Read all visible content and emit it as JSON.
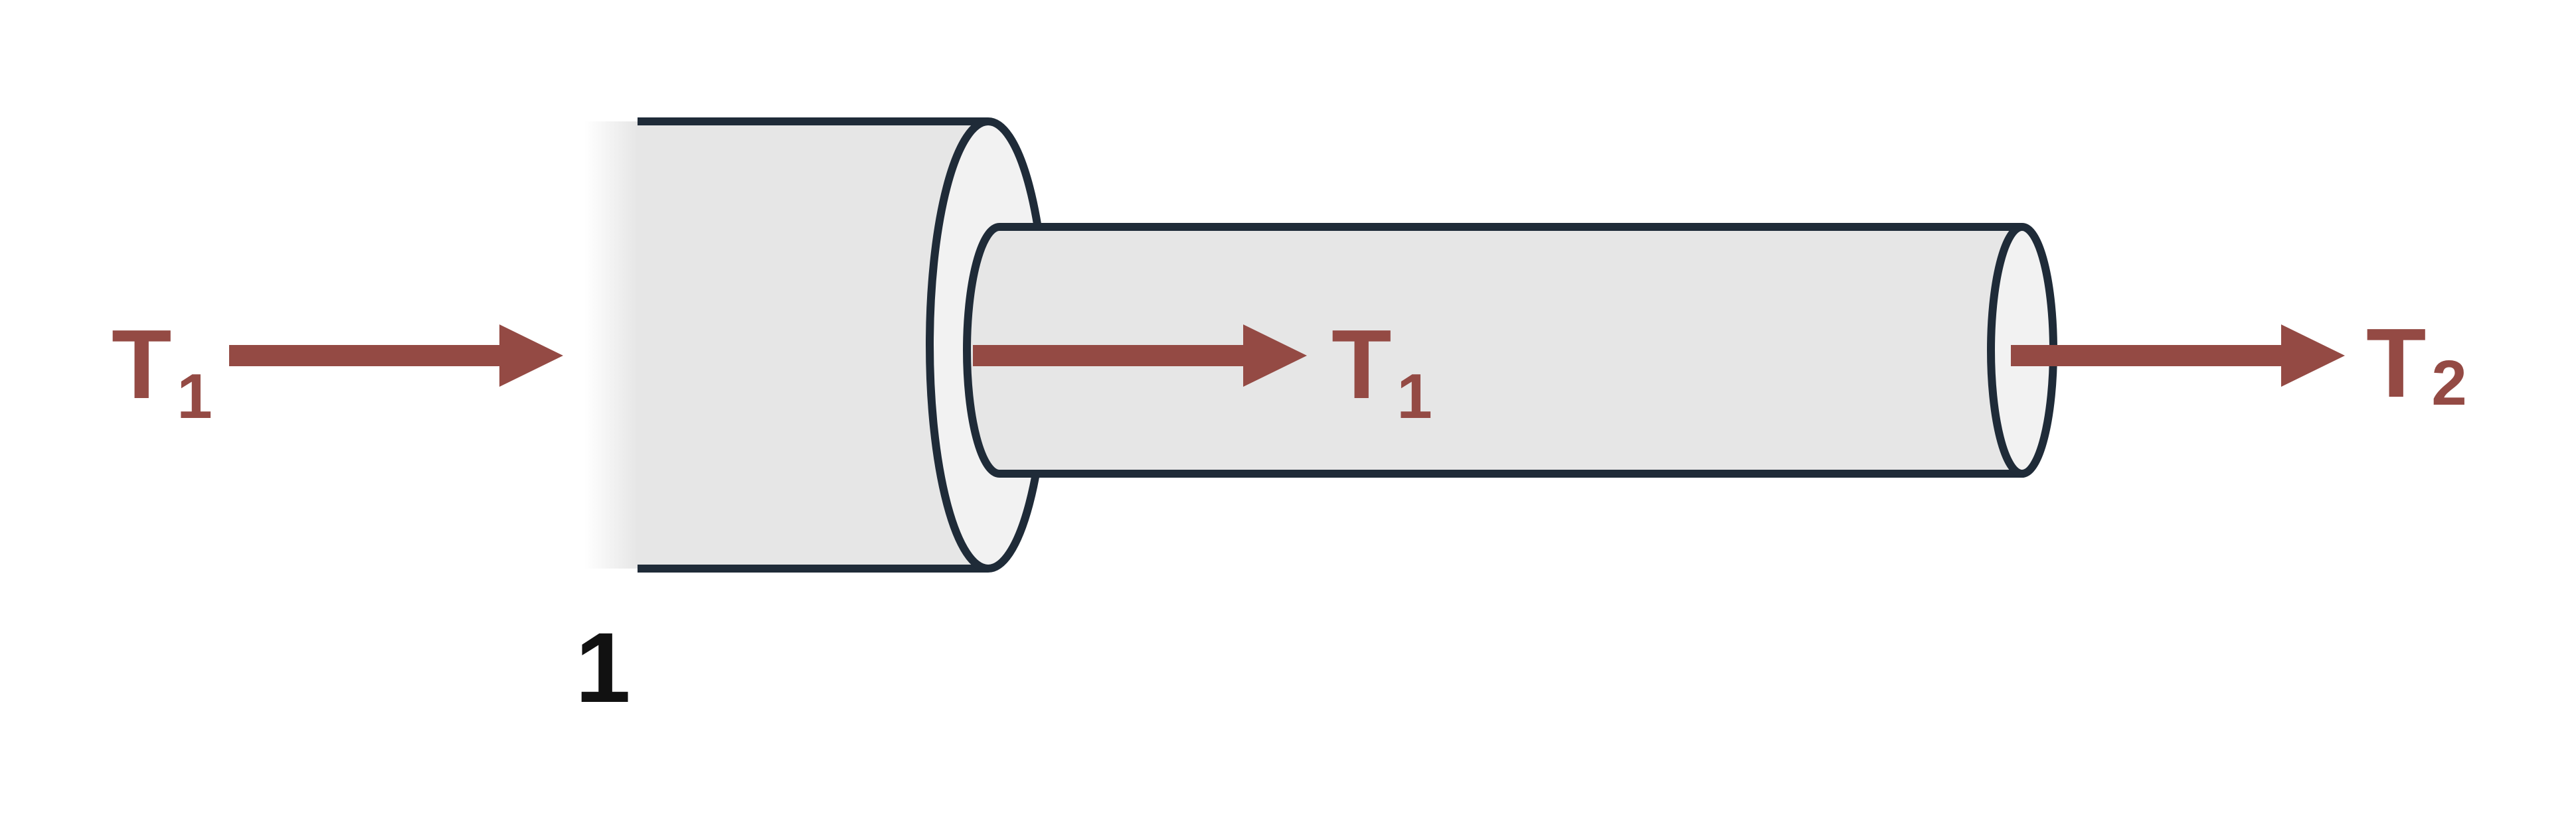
{
  "colors": {
    "background": "#ffffff",
    "pipe_fill": "#e6e6e6",
    "pipe_end_fill": "#f2f2f2",
    "outline": "#1f2b38",
    "arrow": "#944a44",
    "section_label": "#111111"
  },
  "labels": {
    "t_left": {
      "main": "T",
      "sub": "1"
    },
    "t_mid": {
      "main": "T",
      "sub": "1"
    },
    "t_right": {
      "main": "T",
      "sub": "2"
    },
    "section": "1"
  },
  "icons": {
    "arrow": "right-arrow-icon"
  }
}
